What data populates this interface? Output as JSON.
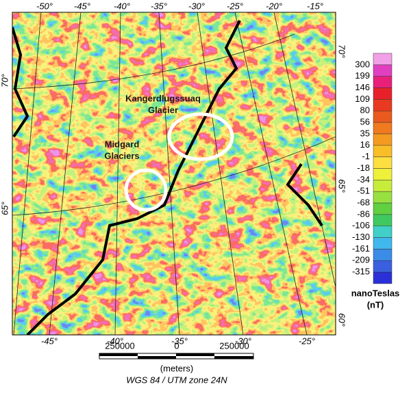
{
  "map": {
    "top_longitudes": [
      "-50°",
      "-45°",
      "-40°",
      "-35°",
      "-30°",
      "-25°",
      "-20°",
      "-15°"
    ],
    "bottom_longitudes": [
      "-45°",
      "-40°",
      "-35°",
      "-30°",
      "-25°"
    ],
    "left_latitudes": [
      "70°",
      "65°"
    ],
    "right_latitudes": [
      "70°",
      "65°",
      "60°"
    ],
    "annotations": [
      {
        "lines": [
          "Kangerdlugssuaq",
          "Glacier"
        ]
      },
      {
        "lines": [
          "Midgard",
          "Glaciers"
        ]
      }
    ]
  },
  "colorbar": {
    "labels": [
      "300",
      "199",
      "146",
      "109",
      "80",
      "56",
      "35",
      "16",
      "-1",
      "-18",
      "-34",
      "-51",
      "-68",
      "-86",
      "-106",
      "-130",
      "-161",
      "-209",
      "-315"
    ],
    "colors": [
      "#f2a0e8",
      "#e040c0",
      "#e8207a",
      "#e8202a",
      "#e83a20",
      "#ea5a1e",
      "#f07a1e",
      "#f59a20",
      "#f8be28",
      "#fde040",
      "#eef03a",
      "#c8ec3a",
      "#98e040",
      "#60d040",
      "#40c860",
      "#40d0c8",
      "#40b8ee",
      "#3a8ce8",
      "#3a60e0",
      "#2a30d8"
    ],
    "title": [
      "nanoTeslas",
      "(nT)"
    ]
  },
  "scale": {
    "labels": [
      "250000",
      "0",
      "250000"
    ],
    "unit": "(meters)",
    "projection": "WGS 84 / UTM zone 24N"
  }
}
